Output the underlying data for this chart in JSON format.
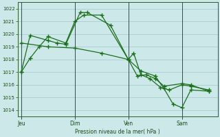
{
  "background_color": "#cce8e8",
  "grid_color": "#aacccc",
  "line_color": "#1a6e1a",
  "xlabel": "Pression niveau de la mer( hPa )",
  "ylim": [
    1013.5,
    1022.5
  ],
  "yticks": [
    1014,
    1015,
    1016,
    1017,
    1018,
    1019,
    1020,
    1021,
    1022
  ],
  "day_labels": [
    "Jeu",
    "Dim",
    "Ven",
    "Sam"
  ],
  "day_positions": [
    0.0,
    3.0,
    6.0,
    9.0
  ],
  "xlim": [
    -0.2,
    11.0
  ],
  "vline_positions": [
    0.0,
    3.0,
    6.0,
    9.0
  ],
  "series1_x": [
    0,
    0.5,
    1.0,
    1.5,
    2.5,
    3.0,
    3.5,
    4.5,
    6.0,
    6.3,
    6.7,
    7.2,
    7.8,
    8.3,
    9.0,
    9.5,
    10.5
  ],
  "series1_y": [
    1017.0,
    1018.1,
    1019.0,
    1019.8,
    1019.3,
    1021.0,
    1021.5,
    1021.5,
    1018.0,
    1018.5,
    1016.8,
    1016.5,
    1015.8,
    1015.6,
    1016.0,
    1015.9,
    1015.6
  ],
  "series2_x": [
    0,
    0.5,
    1.5,
    2.0,
    2.5,
    3.3,
    3.7,
    5.0,
    6.0,
    6.5,
    7.0,
    7.5,
    8.0,
    9.0,
    9.5,
    10.5
  ],
  "series2_y": [
    1017.0,
    1019.9,
    1019.5,
    1019.3,
    1019.2,
    1021.7,
    1021.7,
    1020.7,
    1018.0,
    1016.7,
    1016.8,
    1016.5,
    1015.9,
    1016.1,
    1016.0,
    1015.5
  ],
  "series3_x": [
    0,
    1.5,
    3.0,
    4.5,
    6.0,
    6.7,
    7.5,
    8.0,
    8.5,
    9.0,
    9.5,
    10.5
  ],
  "series3_y": [
    1019.3,
    1019.0,
    1018.9,
    1018.5,
    1018.0,
    1017.1,
    1016.7,
    1015.7,
    1014.5,
    1014.2,
    1015.6,
    1015.5
  ]
}
